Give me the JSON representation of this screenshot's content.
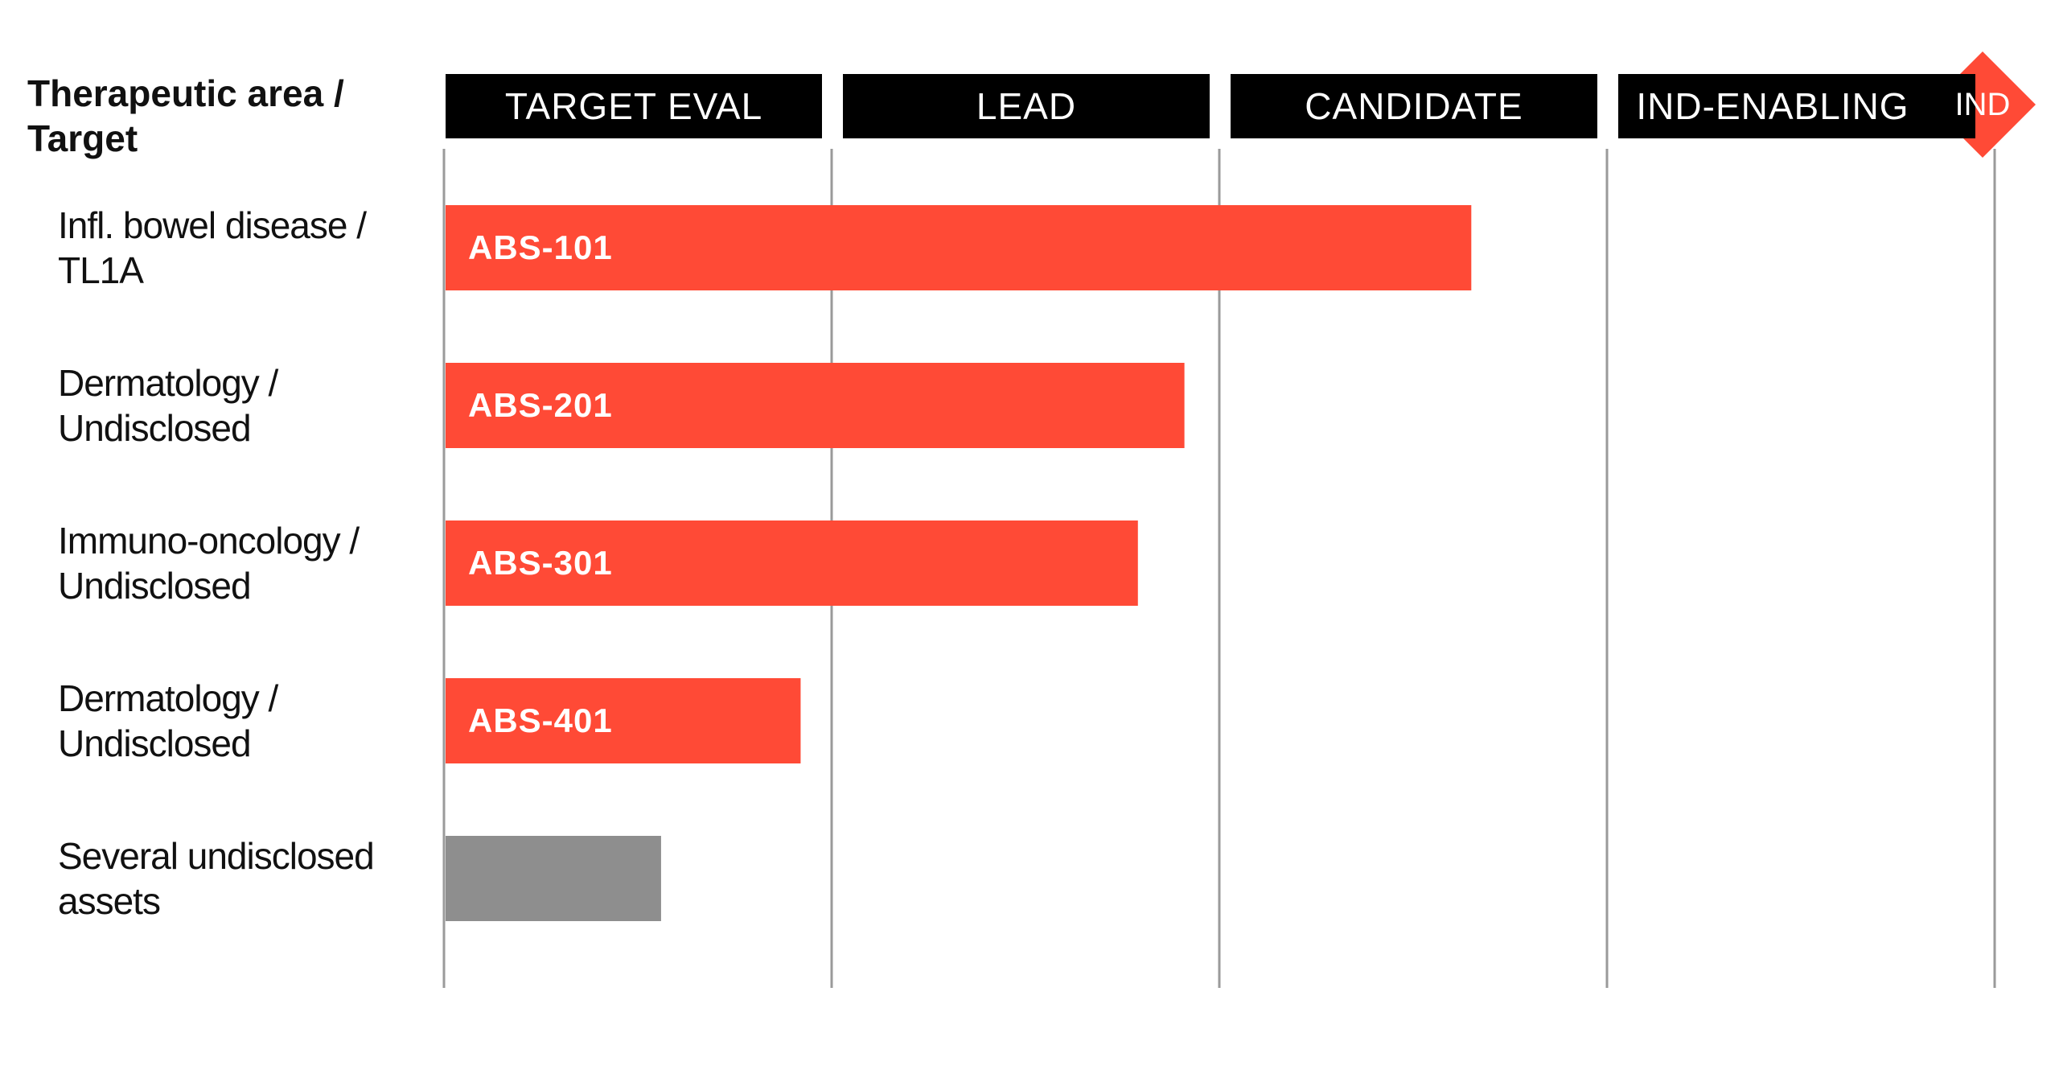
{
  "chart_data": {
    "type": "bar",
    "orientation": "horizontal",
    "title": "",
    "row_header": "Therapeutic area / Target",
    "stages": [
      "TARGET EVAL",
      "LEAD",
      "CANDIDATE",
      "IND-ENABLING"
    ],
    "milestone": "IND",
    "xlim": [
      0,
      4
    ],
    "rows": [
      {
        "label": "Infl. bowel disease / TL1A",
        "asset": "ABS-101",
        "value": 2.65,
        "color": "#ff4a36"
      },
      {
        "label": "Dermatology / Undisclosed",
        "asset": "ABS-201",
        "value": 1.91,
        "color": "#ff4a36"
      },
      {
        "label": "Immuno-oncology / Undisclosed",
        "asset": "ABS-301",
        "value": 1.79,
        "color": "#ff4a36"
      },
      {
        "label": "Dermatology / Undisclosed",
        "asset": "ABS-401",
        "value": 0.92,
        "color": "#ff4a36"
      },
      {
        "label": "Several undisclosed assets",
        "asset": "",
        "value": 0.56,
        "color": "#8e8e8e"
      }
    ],
    "grid": true
  },
  "colors": {
    "accent": "#ff4a36",
    "header_bg": "#000000",
    "gridline": "#9a9a9a",
    "undisclosed": "#8e8e8e"
  }
}
